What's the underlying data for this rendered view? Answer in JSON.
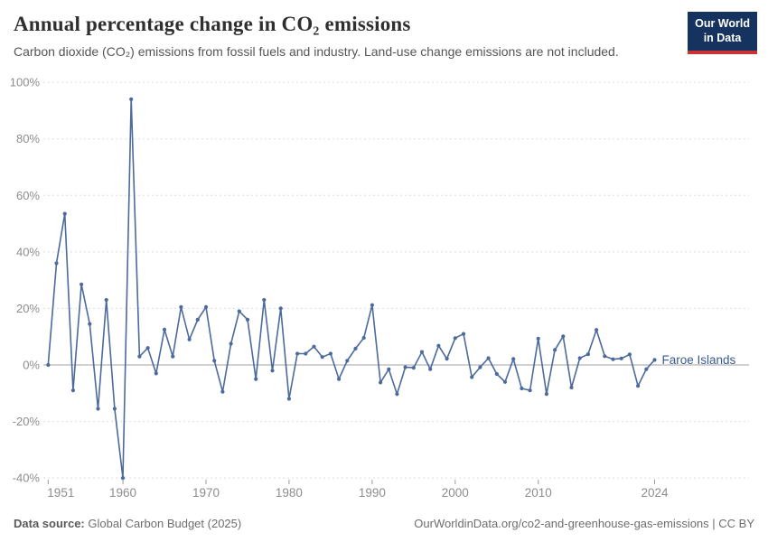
{
  "header": {
    "title": "Annual percentage change in CO₂ emissions",
    "subtitle": "Carbon dioxide (CO₂) emissions from fossil fuels and industry. Land-use change emissions are not included."
  },
  "logo": {
    "line1": "Our World",
    "line2": "in Data",
    "bg_color": "#16335f",
    "accent_color": "#cb3434"
  },
  "footer": {
    "source_label": "Data source:",
    "source_value": "Global Carbon Budget (2025)",
    "license_text": "OurWorldinData.org/co2-and-greenhouse-gas-emissions | CC BY"
  },
  "chart_data": {
    "type": "line",
    "title": "Annual percentage change in CO₂ emissions",
    "entity": "Faroe Islands",
    "line_color": "#4C6A9C",
    "entity_label_color": "#3a5a92",
    "ylabel": "",
    "xlabel": "",
    "ylim": [
      -40,
      100
    ],
    "grid": true,
    "legend_position": "end-of-line",
    "y_ticks": [
      100,
      80,
      60,
      40,
      20,
      0,
      -20,
      -40
    ],
    "y_tick_suffix": "%",
    "x_ticks": [
      1951,
      1960,
      1970,
      1980,
      1990,
      2000,
      2010,
      2024
    ],
    "x": [
      1951,
      1952,
      1953,
      1954,
      1955,
      1956,
      1957,
      1958,
      1959,
      1960,
      1961,
      1962,
      1963,
      1964,
      1965,
      1966,
      1967,
      1968,
      1969,
      1970,
      1971,
      1972,
      1973,
      1974,
      1975,
      1976,
      1977,
      1978,
      1979,
      1980,
      1981,
      1982,
      1983,
      1984,
      1985,
      1986,
      1987,
      1988,
      1989,
      1990,
      1991,
      1992,
      1993,
      1994,
      1995,
      1996,
      1997,
      1998,
      1999,
      2000,
      2001,
      2002,
      2003,
      2004,
      2005,
      2006,
      2007,
      2008,
      2009,
      2010,
      2011,
      2012,
      2013,
      2014,
      2015,
      2016,
      2017,
      2018,
      2019,
      2020,
      2021,
      2022,
      2023,
      2024
    ],
    "values": [
      0,
      36,
      53.5,
      -9,
      28.5,
      14.5,
      -15.5,
      23,
      -15.5,
      -40,
      94,
      3,
      6,
      -3,
      12.5,
      3,
      20.5,
      9,
      16,
      20.5,
      1.5,
      -9.5,
      7.5,
      19,
      16,
      -5,
      23,
      -2,
      20,
      -12,
      4,
      4,
      6.5,
      2.8,
      4,
      -5,
      1.5,
      5.8,
      9.6,
      21.2,
      -6.2,
      -1.5,
      -10.3,
      -0.8,
      -1,
      4.6,
      -1.5,
      6.8,
      2.2,
      9.5,
      11,
      -4.3,
      -0.8,
      2.4,
      -3.2,
      -6,
      2.1,
      -8.3,
      -9,
      9.3,
      -10.3,
      5.3,
      10.1,
      -8,
      2.4,
      3.8,
      12.4,
      3.1,
      2,
      2.3,
      3.7,
      -7.4,
      -1.5,
      1.8
    ]
  }
}
